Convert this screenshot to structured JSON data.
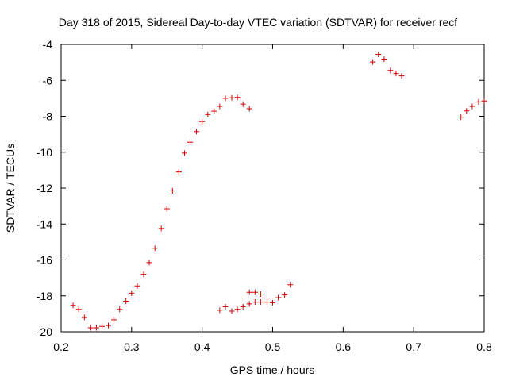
{
  "chart_data": {
    "type": "scatter",
    "title": "Day 318 of 2015, Sidereal Day-to-day VTEC variation (SDTVAR) for receiver recf",
    "xlabel": "GPS time / hours",
    "ylabel": "SDTVAR / TECUs",
    "xlim": [
      0.2,
      0.8
    ],
    "ylim": [
      -20,
      -4
    ],
    "xticks": [
      0.2,
      0.3,
      0.4,
      0.5,
      0.6,
      0.7,
      0.8
    ],
    "xtick_labels": [
      "0.2",
      "0.3",
      "0.4",
      "0.5",
      "0.6",
      "0.7",
      "0.8"
    ],
    "yticks": [
      -20,
      -18,
      -16,
      -14,
      -12,
      -10,
      -8,
      -6,
      -4
    ],
    "ytick_labels": [
      "-20",
      "-18",
      "-16",
      "-14",
      "-12",
      "-10",
      "-8",
      "-6",
      "-4"
    ],
    "grid": false,
    "marker": "+",
    "marker_color": "#cc0000",
    "series": [
      {
        "name": "SDTVAR",
        "points": [
          [
            0.217,
            -18.53
          ],
          [
            0.225,
            -18.75
          ],
          [
            0.233,
            -19.2
          ],
          [
            0.242,
            -19.78
          ],
          [
            0.25,
            -19.78
          ],
          [
            0.258,
            -19.7
          ],
          [
            0.267,
            -19.65
          ],
          [
            0.275,
            -19.33
          ],
          [
            0.283,
            -18.75
          ],
          [
            0.292,
            -18.3
          ],
          [
            0.3,
            -17.85
          ],
          [
            0.308,
            -17.45
          ],
          [
            0.317,
            -16.8
          ],
          [
            0.325,
            -16.15
          ],
          [
            0.333,
            -15.35
          ],
          [
            0.342,
            -14.25
          ],
          [
            0.35,
            -13.15
          ],
          [
            0.358,
            -12.15
          ],
          [
            0.367,
            -11.1
          ],
          [
            0.375,
            -10.05
          ],
          [
            0.383,
            -9.45
          ],
          [
            0.392,
            -8.85
          ],
          [
            0.4,
            -8.3
          ],
          [
            0.408,
            -7.9
          ],
          [
            0.417,
            -7.72
          ],
          [
            0.425,
            -7.45
          ],
          [
            0.433,
            -7.0
          ],
          [
            0.442,
            -6.97
          ],
          [
            0.45,
            -6.95
          ],
          [
            0.458,
            -7.32
          ],
          [
            0.467,
            -7.58
          ],
          [
            0.425,
            -18.8
          ],
          [
            0.433,
            -18.6
          ],
          [
            0.442,
            -18.85
          ],
          [
            0.45,
            -18.75
          ],
          [
            0.458,
            -18.6
          ],
          [
            0.467,
            -18.45
          ],
          [
            0.467,
            -17.8
          ],
          [
            0.475,
            -17.8
          ],
          [
            0.475,
            -18.35
          ],
          [
            0.483,
            -18.35
          ],
          [
            0.483,
            -17.9
          ],
          [
            0.492,
            -18.35
          ],
          [
            0.5,
            -18.38
          ],
          [
            0.508,
            -18.1
          ],
          [
            0.517,
            -17.95
          ],
          [
            0.525,
            -17.38
          ],
          [
            0.642,
            -4.98
          ],
          [
            0.65,
            -4.55
          ],
          [
            0.658,
            -4.82
          ],
          [
            0.667,
            -5.45
          ],
          [
            0.675,
            -5.62
          ],
          [
            0.683,
            -5.75
          ],
          [
            0.767,
            -8.05
          ],
          [
            0.775,
            -7.7
          ],
          [
            0.783,
            -7.45
          ],
          [
            0.792,
            -7.2
          ],
          [
            0.8,
            -7.15
          ]
        ]
      }
    ]
  }
}
